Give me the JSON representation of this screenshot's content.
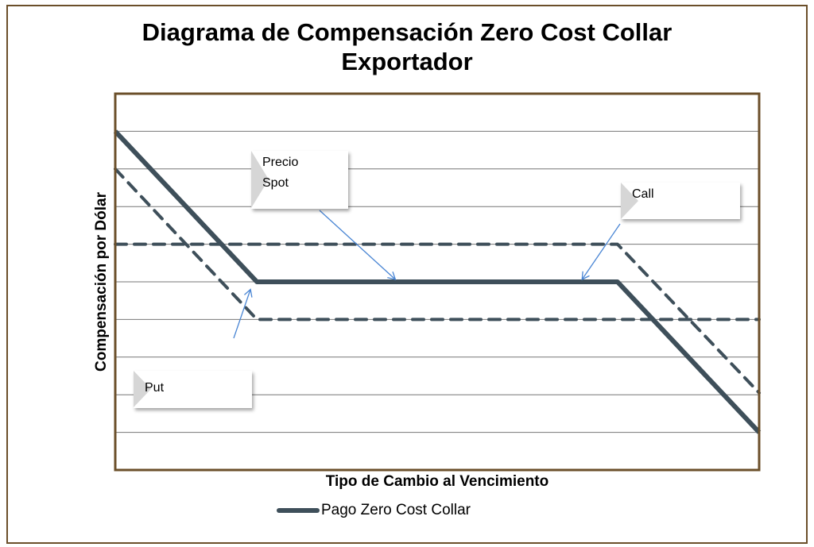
{
  "title_line1": "Diagrama de Compensación Zero Cost Collar",
  "title_line2": "Exportador",
  "chart_data": {
    "type": "line",
    "xlabel": "Tipo de Cambio al Vencimiento",
    "ylabel": "Compensación por Dólar",
    "xlim": [
      0,
      100
    ],
    "ylim": [
      0,
      10
    ],
    "grid": true,
    "legend_position": "bottom",
    "series": [
      {
        "name": "Pago Zero Cost Collar",
        "style": "solid",
        "x": [
          0,
          22,
          78,
          100
        ],
        "y": [
          9,
          5,
          5,
          1
        ]
      },
      {
        "style": "dashed",
        "x": [
          0,
          22,
          100
        ],
        "y": [
          8,
          4,
          4
        ]
      },
      {
        "style": "dashed",
        "x": [
          0,
          78,
          100
        ],
        "y": [
          6,
          6,
          2.05
        ]
      }
    ],
    "annotations": [
      {
        "text": "Precio Spot",
        "points_to": [
          43.5,
          5
        ]
      },
      {
        "text": "Call",
        "points_to": [
          72.5,
          5
        ]
      },
      {
        "text": "Put",
        "points_to": [
          21,
          4.8
        ]
      }
    ]
  },
  "colors": {
    "line": "#3e4f5a",
    "arrow": "#4a86d4",
    "frame": "#6b4f2a",
    "grid": "#777777"
  }
}
